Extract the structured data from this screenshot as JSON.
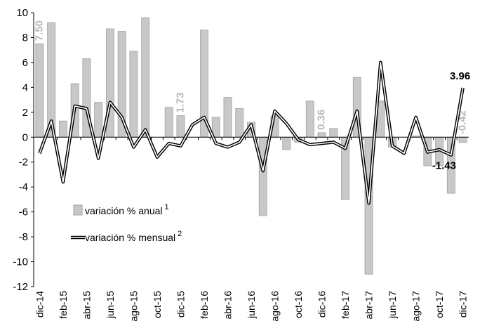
{
  "chart_data": {
    "type": "bar-line",
    "categories": [
      "dic-14",
      null,
      "feb-15",
      null,
      "abr-15",
      null,
      "jun-15",
      null,
      "ago-15",
      null,
      "oct-15",
      null,
      "dic-15",
      null,
      "feb-16",
      null,
      "abr-16",
      null,
      "jun-16",
      null,
      "ago-16",
      null,
      "oct-16",
      null,
      "dic-16",
      null,
      "feb-17",
      null,
      "abr-17",
      null,
      "jun-17",
      null,
      "ago-17",
      null,
      "oct-17",
      null,
      "dic-17"
    ],
    "series": [
      {
        "name": "variación % anual",
        "footnote": "1",
        "type": "bar",
        "color": "#c8c8c8",
        "values": [
          7.5,
          9.2,
          1.3,
          4.3,
          6.3,
          2.8,
          8.7,
          8.5,
          6.9,
          9.6,
          0,
          2.4,
          1.73,
          0,
          8.6,
          1.6,
          3.2,
          2.3,
          1.2,
          -6.3,
          1.7,
          -1.0,
          -0.4,
          2.9,
          0.36,
          0.7,
          -5.0,
          4.8,
          -11.0,
          2.9,
          -0.8,
          0,
          0.1,
          -2.3,
          -2.3,
          -4.5,
          -0.42
        ],
        "value_labels": [
          "7.50",
          null,
          null,
          null,
          null,
          null,
          null,
          null,
          null,
          null,
          null,
          null,
          "1.73",
          null,
          null,
          null,
          null,
          null,
          null,
          null,
          null,
          null,
          null,
          null,
          "0.36",
          null,
          null,
          null,
          null,
          null,
          null,
          null,
          null,
          null,
          null,
          null,
          "-0.42"
        ]
      },
      {
        "name": "variación % mensual",
        "footnote": "2",
        "type": "line",
        "color": "#000000",
        "values": [
          -1.3,
          1.3,
          -3.6,
          2.5,
          2.3,
          -1.7,
          2.8,
          1.6,
          -0.8,
          0.6,
          -1.6,
          -0.5,
          -0.7,
          1.0,
          1.6,
          -0.5,
          -0.8,
          -0.4,
          1.0,
          -2.7,
          2.1,
          1.1,
          -0.2,
          -0.6,
          -0.5,
          -0.4,
          -0.9,
          2.1,
          -5.3,
          6.0,
          -0.7,
          -1.3,
          1.6,
          -1.2,
          -1.0,
          -1.43,
          3.96
        ],
        "value_labels": [
          null,
          null,
          null,
          null,
          null,
          null,
          null,
          null,
          null,
          null,
          null,
          null,
          null,
          null,
          null,
          null,
          null,
          null,
          null,
          null,
          null,
          null,
          null,
          null,
          null,
          null,
          null,
          null,
          null,
          null,
          null,
          null,
          null,
          null,
          null,
          "-1.43",
          "3.96"
        ]
      }
    ],
    "ylim": [
      -12,
      10
    ],
    "yticks": [
      -12,
      -10,
      -8,
      -6,
      -4,
      -2,
      0,
      2,
      4,
      6,
      8,
      10
    ],
    "grid": false,
    "legend": "lower left"
  }
}
